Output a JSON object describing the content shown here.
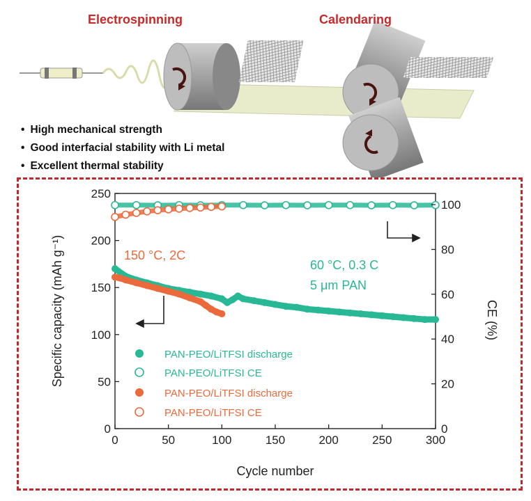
{
  "schematic": {
    "steps": [
      "Electrospinning",
      "Calendaring"
    ],
    "bullets": [
      "High mechanical strength",
      "Good interfacial stability with Li metal",
      "Excellent thermal stability"
    ],
    "colors": {
      "title": "#c62a2a",
      "roller": "#9b9b9b",
      "film": "#e9eccb",
      "arrow": "#4a1410"
    }
  },
  "chart_data": {
    "type": "scatter",
    "xlabel": "Cycle number",
    "ylabel_left": "Specific capacity (mAh g⁻¹)",
    "ylabel_right": "CE (%)",
    "xlim": [
      0,
      300
    ],
    "ylim_left": [
      0,
      250
    ],
    "ylim_right": [
      0,
      105
    ],
    "x_ticks": [
      "0",
      "50",
      "100",
      "150",
      "200",
      "250",
      "300"
    ],
    "y_left_ticks": [
      "0",
      "50",
      "100",
      "150",
      "200",
      "250"
    ],
    "y_right_ticks": [
      "0",
      "20",
      "40",
      "60",
      "80",
      "100"
    ],
    "annotations": {
      "hot": "150 °C, 2C",
      "rt_line1": "60 °C, 0.3 C",
      "rt_line2": "5 μm PAN"
    },
    "legend": {
      "position": "bottom-left",
      "entries": [
        "PAN-PEO/LiTFSI discharge",
        "PAN-PEO/LiTFSI CE",
        "PAN-PEO/LiTFSI discharge",
        "PAN-PEO/LiTFSI CE"
      ]
    },
    "colors": {
      "teal": "#28b896",
      "orange": "#ea6a3c"
    },
    "series": [
      {
        "marker": "filled",
        "axis": "left",
        "color": "teal",
        "x": [
          0,
          10,
          20,
          30,
          40,
          50,
          60,
          70,
          80,
          90,
          100,
          105,
          110,
          115,
          120,
          130,
          140,
          150,
          160,
          170,
          180,
          190,
          200,
          210,
          220,
          230,
          240,
          250,
          260,
          270,
          280,
          290,
          300
        ],
        "y": [
          170,
          162,
          158,
          155,
          152,
          149,
          147,
          145,
          143,
          141,
          138,
          134,
          137,
          141,
          138,
          136,
          134,
          132,
          130,
          129,
          127,
          126,
          125,
          124,
          123,
          122,
          121,
          120,
          119,
          118,
          117,
          116,
          116
        ]
      },
      {
        "marker": "open",
        "axis": "right",
        "color": "teal",
        "x": [
          0,
          20,
          40,
          60,
          80,
          100,
          120,
          140,
          160,
          180,
          200,
          220,
          240,
          260,
          280,
          300
        ],
        "y": [
          99.8,
          99.8,
          99.7,
          99.8,
          99.7,
          99.8,
          99.8,
          99.7,
          99.8,
          99.7,
          99.8,
          99.8,
          99.7,
          99.8,
          99.7,
          99.8
        ]
      },
      {
        "marker": "filled",
        "axis": "left",
        "color": "orange",
        "x": [
          0,
          5,
          10,
          20,
          30,
          40,
          50,
          60,
          70,
          80,
          85,
          90,
          95,
          100
        ],
        "y": [
          161,
          160,
          158,
          155,
          152,
          149,
          146,
          143,
          139,
          135,
          131,
          127,
          124,
          122
        ]
      },
      {
        "marker": "open",
        "axis": "right",
        "color": "orange",
        "x": [
          0,
          10,
          20,
          30,
          40,
          50,
          60,
          70,
          80,
          90,
          100
        ],
        "y": [
          94.5,
          95.5,
          96.3,
          97.0,
          97.5,
          97.9,
          98.2,
          98.5,
          98.7,
          99.0,
          99.2
        ]
      }
    ]
  }
}
